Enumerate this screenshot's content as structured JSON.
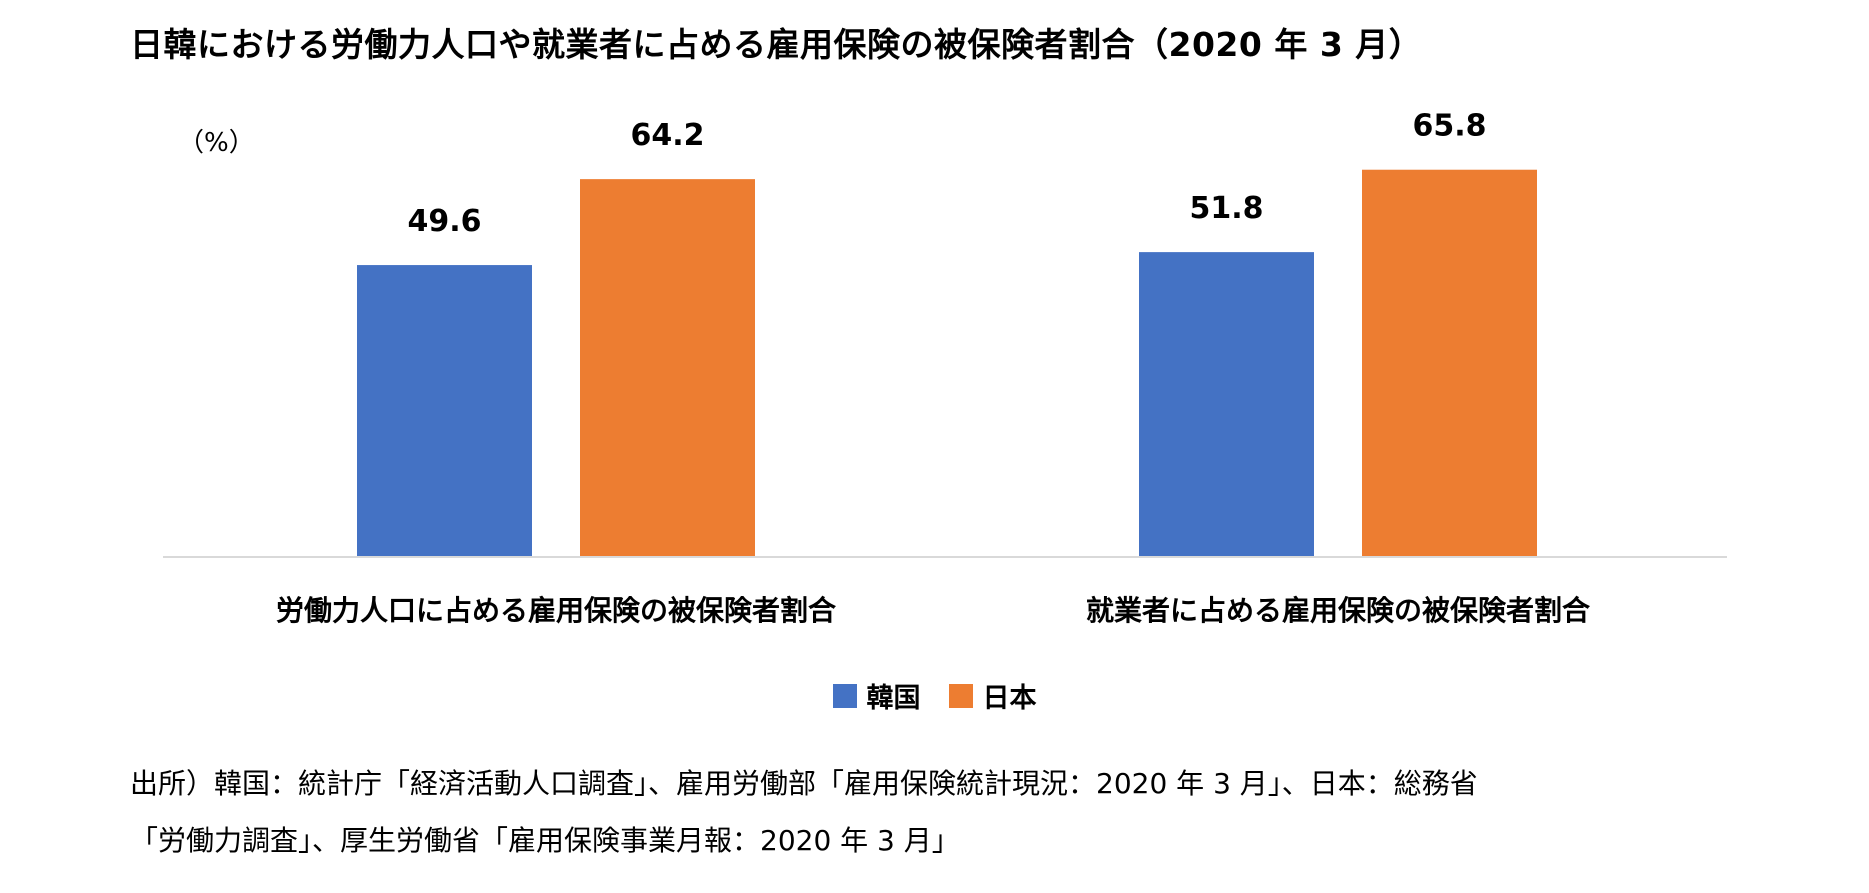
{
  "title": "日韓における労働力人口や就業者に占める雇用保険の被保険者割合（2020 年 3 月）",
  "chart_data": {
    "type": "bar",
    "title": "日韓における労働力人口や就業者に占める雇用保険の被保険者割合（2020 年 3 月）",
    "ylabel": "（%）",
    "ylim": [
      0,
      70
    ],
    "grid": false,
    "legend_position": "bottom",
    "categories": [
      "労働力人口に占める雇用保険の被保険者割合",
      "就業者に占める雇用保険の被保険者割合"
    ],
    "series": [
      {
        "name": "韓国",
        "color": "#4472C4",
        "values": [
          49.6,
          51.8
        ],
        "labels": [
          "49.6",
          "51.8"
        ]
      },
      {
        "name": "日本",
        "color": "#ED7D31",
        "values": [
          64.2,
          65.8
        ],
        "labels": [
          "64.2",
          "65.8"
        ]
      }
    ]
  },
  "source_lines": [
    "出所）韓国：統計庁「経済活動人口調査」、雇用労働部「雇用保険統計現況：2020 年 3 月」、日本：総務省",
    "「労働力調査」、厚生労働省「雇用保険事業月報：2020 年 3 月」"
  ]
}
